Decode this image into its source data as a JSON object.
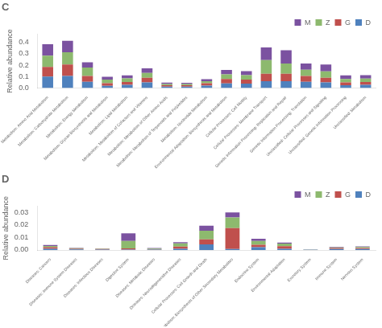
{
  "chart_data": [
    {
      "type": "bar",
      "title": "C",
      "y_label": "Relative abundance",
      "stacked": true,
      "grid": false,
      "legend": "upper right",
      "categories": [
        "Metabolism: Amino Acid Metabolism",
        "Metabolism: Carbohydrate Metabolism",
        "Metabolism: Energy Metabolism",
        "Metabolism: Glycan Biosynthesis and Metabolism",
        "Metabolism: Lipid Metabolism",
        "Metabolism: Metabolism of Cofactors and Vitamins",
        "Metabolism: Metabolism of Other Amino Acids",
        "Metabolism: Metabolism of Terpenoids and Polyketides",
        "Metabolism: Nucleotide Metabolism",
        "Environmental Adaptation: Biosynthesis and Metabolism",
        "Cellular Processes: Cell Motility",
        "Cellular Processes: Membrane Transport",
        "Genetic Information Processing: Replication and Repair",
        "Genetic Information Processing: Translation",
        "Unclassified: Cellular Processes and Signaling",
        "Unclassified: Genetic Information Processing",
        "Unclassified: Metabolism"
      ],
      "series": [
        {
          "name": "D",
          "color": "#4F81BD",
          "values": [
            0.1,
            0.105,
            0.055,
            0.02,
            0.028,
            0.05,
            0.012,
            0.012,
            0.022,
            0.04,
            0.038,
            0.06,
            0.06,
            0.055,
            0.05,
            0.025,
            0.028
          ]
        },
        {
          "name": "G",
          "color": "#C0504D",
          "values": [
            0.085,
            0.1,
            0.05,
            0.022,
            0.025,
            0.04,
            0.012,
            0.012,
            0.02,
            0.04,
            0.035,
            0.065,
            0.065,
            0.05,
            0.04,
            0.025,
            0.025
          ]
        },
        {
          "name": "Z",
          "color": "#8DB96E",
          "values": [
            0.098,
            0.108,
            0.075,
            0.032,
            0.032,
            0.042,
            0.012,
            0.012,
            0.018,
            0.04,
            0.04,
            0.12,
            0.09,
            0.055,
            0.055,
            0.03,
            0.03
          ]
        },
        {
          "name": "M",
          "color": "#7B52A0",
          "values": [
            0.1,
            0.1,
            0.045,
            0.025,
            0.025,
            0.04,
            0.012,
            0.01,
            0.018,
            0.038,
            0.035,
            0.11,
            0.115,
            0.055,
            0.06,
            0.03,
            0.03
          ]
        }
      ],
      "ylim": [
        0,
        0.47
      ],
      "yticks": [
        {
          "value": 0,
          "label": "0.0"
        },
        0.1,
        0.2,
        0.3,
        0.4
      ]
    },
    {
      "type": "bar",
      "title": "D",
      "y_label": "Relative abundance",
      "stacked": true,
      "grid": false,
      "legend": "upper right",
      "categories": [
        "Diseases: Cancers",
        "Diseases: Immune System Diseases",
        "Diseases: Infectious Diseases",
        "Digestive System",
        "Diseases: Metabolic Diseases",
        "Diseases: Neurodegenerative Diseases",
        "Cellular Processes: Cell Growth and Death",
        "Metabolism: Biosynthesis of Other Secondary Metabolites",
        "Endocrine System",
        "Environmental Adaptation",
        "Excretory System",
        "Immune System",
        "Nervous System"
      ],
      "series": [
        {
          "name": "D",
          "color": "#4F81BD",
          "values": [
            0.001,
            0.0005,
            0.0003,
            0.0003,
            0.0003,
            0.001,
            0.0045,
            0.0008,
            0.0022,
            0.001,
            0.0001,
            0.0008,
            0.0008
          ]
        },
        {
          "name": "G",
          "color": "#C0504D",
          "values": [
            0.0012,
            0.0004,
            0.0005,
            0.001,
            0.0004,
            0.0018,
            0.004,
            0.0168,
            0.002,
            0.002,
            0.0001,
            0.0008,
            0.0008
          ]
        },
        {
          "name": "Z",
          "color": "#8DB96E",
          "values": [
            0.001,
            0.0005,
            0.0003,
            0.006,
            0.0004,
            0.0025,
            0.007,
            0.0085,
            0.003,
            0.0022,
            0.0002,
            0.0005,
            0.0008
          ]
        },
        {
          "name": "M",
          "color": "#7B52A0",
          "values": [
            0.0008,
            0.0003,
            0.0002,
            0.006,
            0.0005,
            0.001,
            0.004,
            0.004,
            0.0018,
            0.0008,
            0.0001,
            0.0004,
            0.0005
          ]
        }
      ],
      "ylim": [
        0,
        0.035
      ],
      "yticks": [
        {
          "value": 0,
          "label": "0.00"
        },
        {
          "value": 0.01,
          "label": "0.01"
        },
        {
          "value": 0.02,
          "label": "0.02"
        },
        {
          "value": 0.03,
          "label": "0.03"
        }
      ]
    }
  ]
}
